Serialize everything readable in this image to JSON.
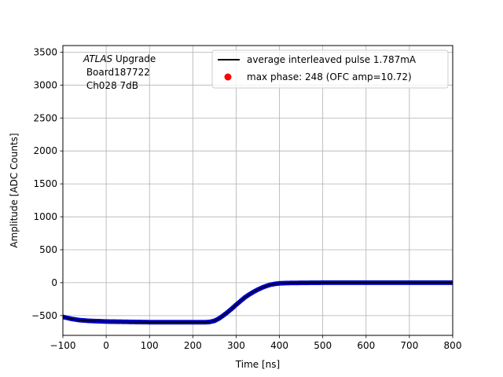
{
  "chart_data": {
    "type": "line",
    "title": "",
    "xlabel": "Time [ns]",
    "ylabel": "Amplitude [ADC Counts]",
    "xlim": [
      -100,
      800
    ],
    "ylim": [
      -800,
      3600
    ],
    "xticks": [
      -100,
      0,
      100,
      200,
      300,
      400,
      500,
      600,
      700,
      800
    ],
    "yticks": [
      -500,
      0,
      500,
      1000,
      1500,
      2000,
      2500,
      3000,
      3500
    ],
    "grid": true,
    "legend_placement": "top-right",
    "annotation": {
      "line1_italic": "ATLAS",
      "line1_rest": " Upgrade",
      "line2": " Board187722",
      "line3": " Ch028 7dB"
    },
    "series": [
      {
        "name": "average interleaved pulse 1.787mA",
        "kind": "line",
        "color": "#000000",
        "x": [
          -100,
          -80,
          -60,
          -40,
          -20,
          0,
          50,
          100,
          150,
          200,
          230,
          240,
          250,
          260,
          270,
          280,
          290,
          300,
          310,
          320,
          330,
          340,
          350,
          360,
          370,
          380,
          390,
          400,
          420,
          450,
          500,
          600,
          700,
          800
        ],
        "y": [
          -520,
          -550,
          -570,
          -580,
          -585,
          -590,
          -595,
          -600,
          -600,
          -600,
          -600,
          -595,
          -580,
          -545,
          -500,
          -450,
          -395,
          -335,
          -280,
          -225,
          -180,
          -140,
          -105,
          -75,
          -50,
          -30,
          -18,
          -10,
          -5,
          -3,
          0,
          0,
          0,
          0
        ]
      },
      {
        "name": "",
        "kind": "points",
        "color": "#0000cc",
        "x": [
          -100,
          -80,
          -60,
          -40,
          -20,
          0,
          50,
          100,
          150,
          200,
          230,
          240,
          250,
          260,
          270,
          280,
          290,
          300,
          310,
          320,
          330,
          340,
          350,
          360,
          370,
          380,
          390,
          400,
          420,
          450,
          500,
          600,
          700,
          800
        ],
        "y": [
          -520,
          -550,
          -570,
          -580,
          -585,
          -590,
          -595,
          -600,
          -600,
          -600,
          -600,
          -595,
          -580,
          -545,
          -500,
          -450,
          -395,
          -335,
          -280,
          -225,
          -180,
          -140,
          -105,
          -75,
          -50,
          -30,
          -18,
          -10,
          -5,
          -3,
          0,
          0,
          0,
          0
        ]
      },
      {
        "name": "max phase: 248 (OFC amp=10.72)",
        "kind": "marker",
        "color": "#ff0000",
        "x": [],
        "y": []
      }
    ]
  }
}
